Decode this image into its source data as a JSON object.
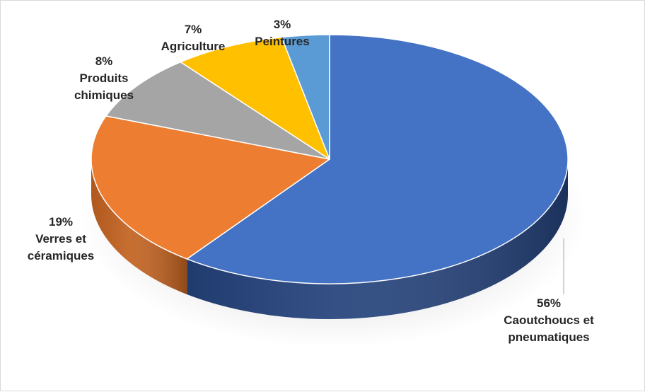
{
  "chart_data": {
    "type": "pie",
    "three_d": true,
    "legend": "none",
    "slices": [
      {
        "label_pct": "56%",
        "label_lines": [
          "Caoutchoucs et",
          "pneumatiques"
        ],
        "value": 56,
        "color": "#4472c4",
        "side_color": "#23417a"
      },
      {
        "label_pct": "19%",
        "label_lines": [
          "Verres et",
          "céramiques"
        ],
        "value": 19,
        "color": "#ed7d31",
        "side_color": "#c2611f"
      },
      {
        "label_pct": "8%",
        "label_lines": [
          "Produits",
          "chimiques"
        ],
        "value": 8,
        "color": "#a5a5a5",
        "side_color": "#7f7f7f"
      },
      {
        "label_pct": "7%",
        "label_lines": [
          "Agriculture"
        ],
        "value": 7,
        "color": "#ffc000",
        "side_color": "#c79600"
      },
      {
        "label_pct": "3%",
        "label_lines": [
          "Peintures"
        ],
        "value": 3,
        "color": "#5b9bd5",
        "side_color": "#3a75ad"
      }
    ]
  }
}
